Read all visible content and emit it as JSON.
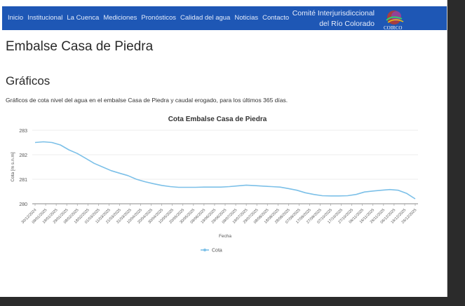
{
  "nav": {
    "items": [
      "Inicio",
      "Institucional",
      "La Cuenca",
      "Mediciones",
      "Pronósticos",
      "Calidad del agua",
      "Noticias",
      "Contacto"
    ],
    "org_line1": "Comité Interjurisdiccional",
    "org_line2": "del Río Colorado",
    "logo_text": "COIRCO"
  },
  "page": {
    "title": "Embalse Casa de Piedra",
    "section_title": "Gráficos",
    "description": "Gráficos de cota nivel del agua en el embalse Casa de Piedra y caudal erogado, para los últimos 365 días."
  },
  "colors": {
    "nav_bg": "#1e57b5",
    "series": "#7cc0e8"
  },
  "chart_data": {
    "type": "line",
    "title": "Cota Embalse Casa de Piedra",
    "xlabel": "Fecha",
    "ylabel": "Cota [m s.n.m]",
    "ylim": [
      280,
      283
    ],
    "yticks": [
      280,
      281,
      282,
      283
    ],
    "legend": "bottom-center",
    "grid": true,
    "x_tick_labels": [
      "30/12/2024",
      "09/01/2025",
      "19/01/2025",
      "29/01/2025",
      "08/02/2025",
      "18/02/2025",
      "01/03/2025",
      "11/03/2025",
      "21/03/2025",
      "31/03/2025",
      "10/04/2025",
      "20/04/2025",
      "30/04/2025",
      "10/05/2025",
      "20/05/2025",
      "30/05/2025",
      "09/06/2025",
      "19/06/2025",
      "29/06/2025",
      "09/07/2025",
      "19/07/2025",
      "29/07/2025",
      "08/08/2025",
      "18/08/2025",
      "28/08/2025",
      "07/09/2025",
      "17/09/2025",
      "27/09/2025",
      "07/10/2025",
      "17/10/2025",
      "27/10/2025",
      "06/11/2025",
      "16/11/2025",
      "26/11/2025",
      "06/12/2025",
      "16/12/2025",
      "26/12/2025"
    ],
    "series": [
      {
        "name": "Cota",
        "values": [
          282.5,
          282.53,
          282.5,
          282.4,
          282.2,
          282.05,
          281.85,
          281.65,
          281.5,
          281.35,
          281.25,
          281.15,
          281.0,
          280.9,
          280.82,
          280.75,
          280.7,
          280.67,
          280.67,
          280.67,
          280.68,
          280.68,
          280.68,
          280.7,
          280.73,
          280.76,
          280.74,
          280.72,
          280.7,
          280.68,
          280.62,
          280.55,
          280.45,
          280.38,
          280.33,
          280.32,
          280.32,
          280.33,
          280.38,
          280.48,
          280.52,
          280.55,
          280.58,
          280.55,
          280.42,
          280.2
        ]
      }
    ]
  }
}
